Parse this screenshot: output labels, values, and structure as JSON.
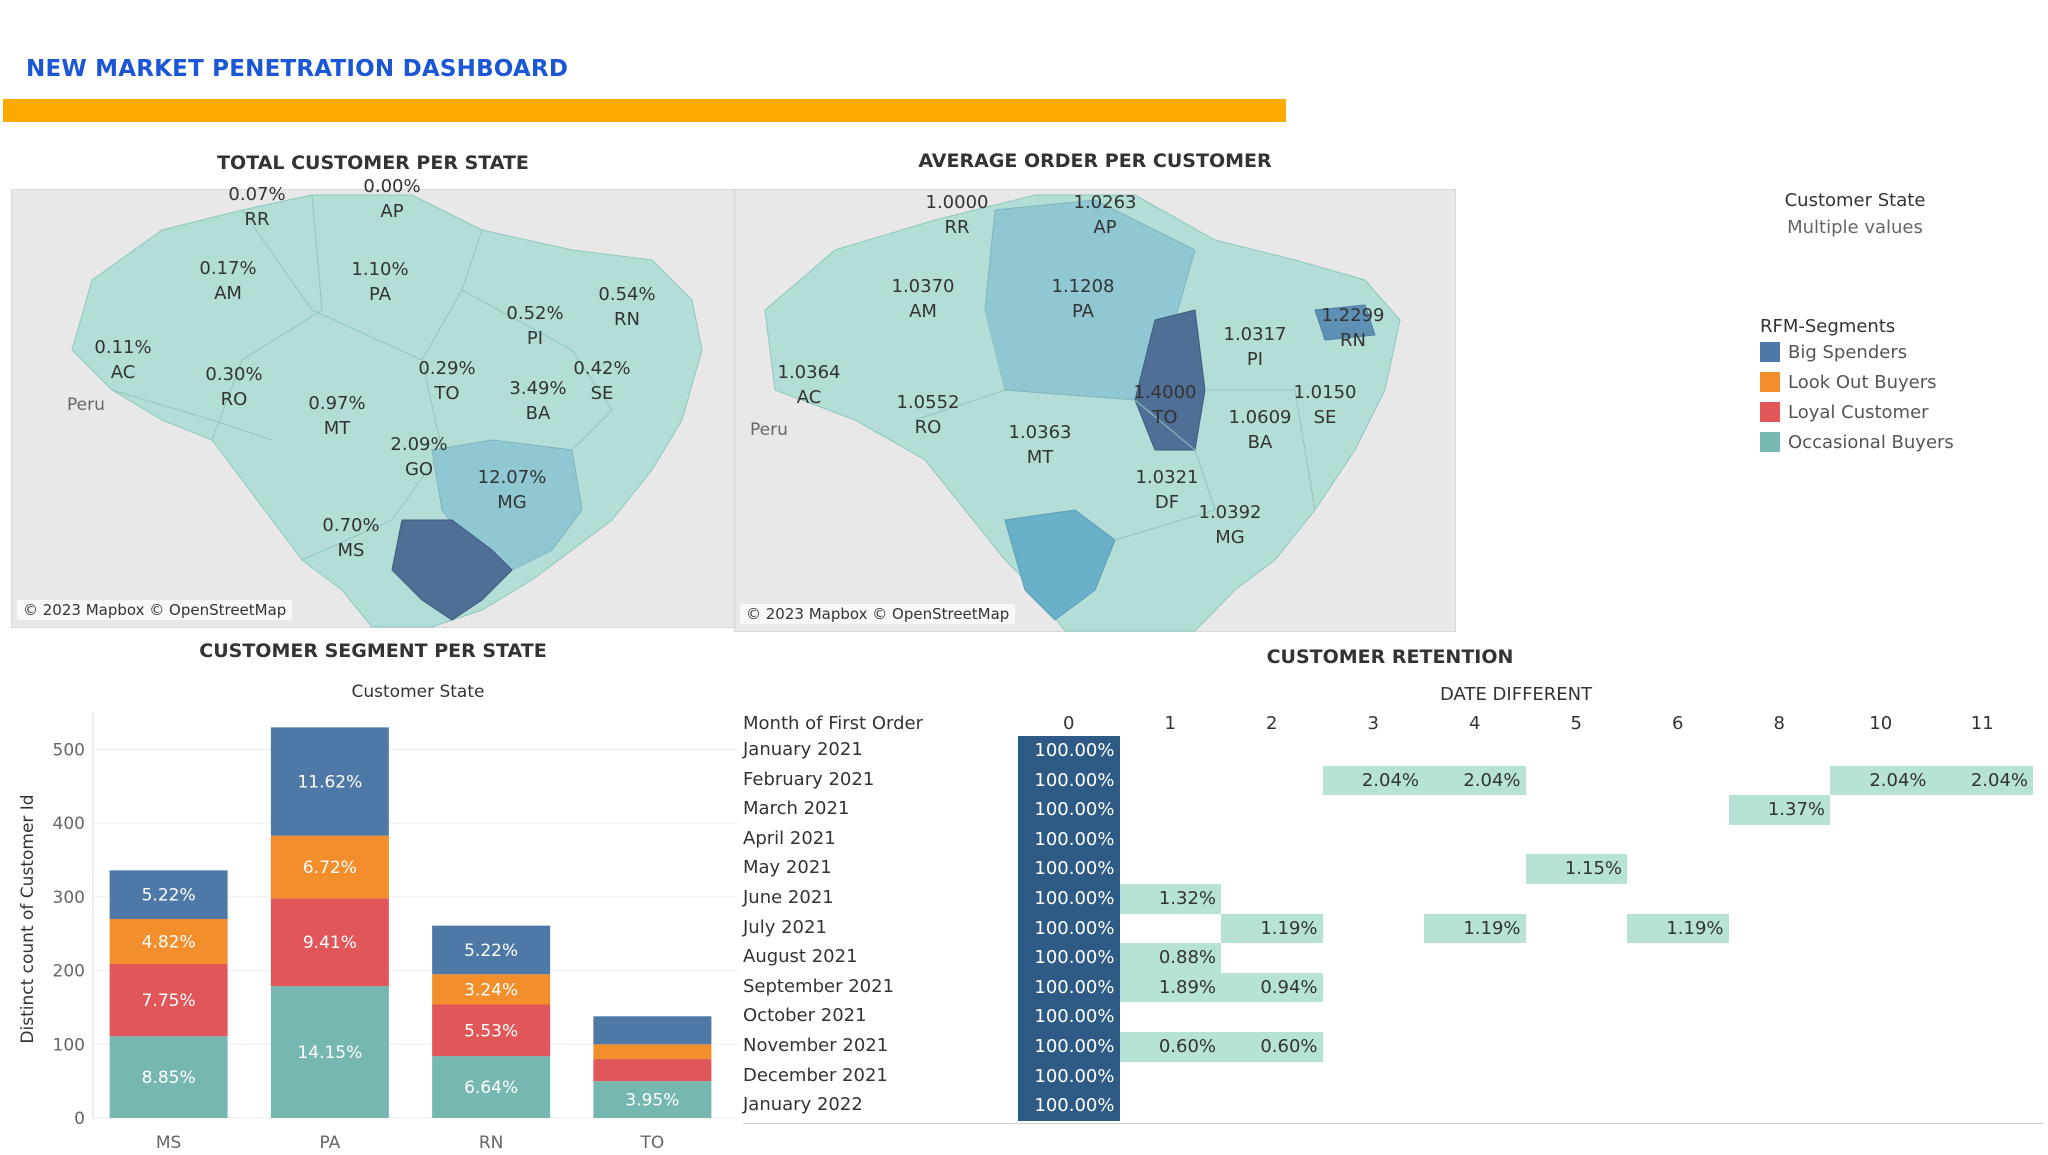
{
  "dashboard_title": "NEW MARKET PENETRATION DASHBOARD",
  "accent_color": "#ffaa00",
  "title_color": "#1a56d6",
  "map1": {
    "title": "TOTAL CUSTOMER PER STATE",
    "attribution": "© 2023 Mapbox © OpenStreetMap",
    "country_label": "Peru",
    "labels": [
      {
        "state": "RR",
        "value": "0.07%"
      },
      {
        "state": "AP",
        "value": "0.00%"
      },
      {
        "state": "AM",
        "value": "0.17%"
      },
      {
        "state": "PA",
        "value": "1.10%"
      },
      {
        "state": "RN",
        "value": "0.54%"
      },
      {
        "state": "PI",
        "value": "0.52%"
      },
      {
        "state": "AC",
        "value": "0.11%"
      },
      {
        "state": "RO",
        "value": "0.30%"
      },
      {
        "state": "TO",
        "value": "0.29%"
      },
      {
        "state": "SE",
        "value": "0.42%"
      },
      {
        "state": "MT",
        "value": "0.97%"
      },
      {
        "state": "BA",
        "value": "3.49%"
      },
      {
        "state": "GO",
        "value": "2.09%"
      },
      {
        "state": "MG",
        "value": "12.07%"
      },
      {
        "state": "MS",
        "value": "0.70%"
      }
    ]
  },
  "map2": {
    "title": "AVERAGE ORDER PER CUSTOMER",
    "attribution": "© 2023 Mapbox © OpenStreetMap",
    "country_label": "Peru",
    "labels": [
      {
        "state": "RR",
        "value": "1.0000"
      },
      {
        "state": "AP",
        "value": "1.0263"
      },
      {
        "state": "AM",
        "value": "1.0370"
      },
      {
        "state": "PA",
        "value": "1.1208"
      },
      {
        "state": "RN",
        "value": "1.2299"
      },
      {
        "state": "PI",
        "value": "1.0317"
      },
      {
        "state": "AC",
        "value": "1.0364"
      },
      {
        "state": "TO",
        "value": "1.4000"
      },
      {
        "state": "SE",
        "value": "1.0150"
      },
      {
        "state": "RO",
        "value": "1.0552"
      },
      {
        "state": "MT",
        "value": "1.0363"
      },
      {
        "state": "BA",
        "value": "1.0609"
      },
      {
        "state": "DF",
        "value": "1.0321"
      },
      {
        "state": "MG",
        "value": "1.0392"
      }
    ]
  },
  "filter": {
    "title": "Customer State",
    "value": "Multiple values"
  },
  "legend": {
    "title": "RFM-Segments",
    "items": [
      {
        "label": "Big Spenders",
        "color": "#4e79a7"
      },
      {
        "label": "Look Out Buyers",
        "color": "#f28e2b"
      },
      {
        "label": "Loyal Customer",
        "color": "#e15759"
      },
      {
        "label": "Occasional Buyers",
        "color": "#76b7b2"
      }
    ]
  },
  "segment_chart": {
    "title": "CUSTOMER SEGMENT PER STATE",
    "header": "Customer State",
    "chart_data": {
      "type": "bar",
      "stacked": true,
      "categories": [
        "MS",
        "PA",
        "RN",
        "TO"
      ],
      "ylabel": "Distinct count of Customer Id",
      "ylim": [
        0,
        540
      ],
      "yticks": [
        0,
        100,
        200,
        300,
        400,
        500
      ],
      "series": [
        {
          "name": "Occasional Buyers",
          "color": "#76b7b2",
          "values": [
            111,
            179,
            84,
            50
          ],
          "labels": [
            "8.85%",
            "14.15%",
            "6.64%",
            "3.95%"
          ]
        },
        {
          "name": "Loyal Customer",
          "color": "#e15759",
          "values": [
            98,
            119,
            70,
            30
          ],
          "labels": [
            "7.75%",
            "9.41%",
            "5.53%",
            ""
          ]
        },
        {
          "name": "Look Out Buyers",
          "color": "#f28e2b",
          "values": [
            61,
            85,
            41,
            20
          ],
          "labels": [
            "4.82%",
            "6.72%",
            "3.24%",
            ""
          ]
        },
        {
          "name": "Big Spenders",
          "color": "#4e79a7",
          "values": [
            66,
            147,
            66,
            38
          ],
          "labels": [
            "5.22%",
            "11.62%",
            "5.22%",
            ""
          ]
        }
      ]
    }
  },
  "retention": {
    "title": "CUSTOMER RETENTION",
    "col_group": "DATE DIFFERENT",
    "row_header": "Month of First Order",
    "columns": [
      "0",
      "1",
      "2",
      "3",
      "4",
      "5",
      "6",
      "8",
      "10",
      "11"
    ],
    "rows": [
      {
        "month": "January 2021",
        "cells": [
          "100.00%",
          "",
          "",
          "",
          "",
          "",
          "",
          "",
          "",
          ""
        ]
      },
      {
        "month": "February 2021",
        "cells": [
          "100.00%",
          "",
          "",
          "2.04%",
          "2.04%",
          "",
          "",
          "",
          "2.04%",
          "2.04%"
        ]
      },
      {
        "month": "March 2021",
        "cells": [
          "100.00%",
          "",
          "",
          "",
          "",
          "",
          "",
          "1.37%",
          "",
          ""
        ]
      },
      {
        "month": "April 2021",
        "cells": [
          "100.00%",
          "",
          "",
          "",
          "",
          "",
          "",
          "",
          "",
          ""
        ]
      },
      {
        "month": "May 2021",
        "cells": [
          "100.00%",
          "",
          "",
          "",
          "",
          "1.15%",
          "",
          "",
          "",
          ""
        ]
      },
      {
        "month": "June 2021",
        "cells": [
          "100.00%",
          "1.32%",
          "",
          "",
          "",
          "",
          "",
          "",
          "",
          ""
        ]
      },
      {
        "month": "July 2021",
        "cells": [
          "100.00%",
          "",
          "1.19%",
          "",
          "1.19%",
          "",
          "1.19%",
          "",
          "",
          ""
        ]
      },
      {
        "month": "August 2021",
        "cells": [
          "100.00%",
          "0.88%",
          "",
          "",
          "",
          "",
          "",
          "",
          "",
          ""
        ]
      },
      {
        "month": "September 2021",
        "cells": [
          "100.00%",
          "1.89%",
          "0.94%",
          "",
          "",
          "",
          "",
          "",
          "",
          ""
        ]
      },
      {
        "month": "October 2021",
        "cells": [
          "100.00%",
          "",
          "",
          "",
          "",
          "",
          "",
          "",
          "",
          ""
        ]
      },
      {
        "month": "November 2021",
        "cells": [
          "100.00%",
          "0.60%",
          "0.60%",
          "",
          "",
          "",
          "",
          "",
          "",
          ""
        ]
      },
      {
        "month": "December 2021",
        "cells": [
          "100.00%",
          "",
          "",
          "",
          "",
          "",
          "",
          "",
          "",
          ""
        ]
      },
      {
        "month": "January 2022",
        "cells": [
          "100.00%",
          "",
          "",
          "",
          "",
          "",
          "",
          "",
          "",
          ""
        ]
      }
    ]
  }
}
